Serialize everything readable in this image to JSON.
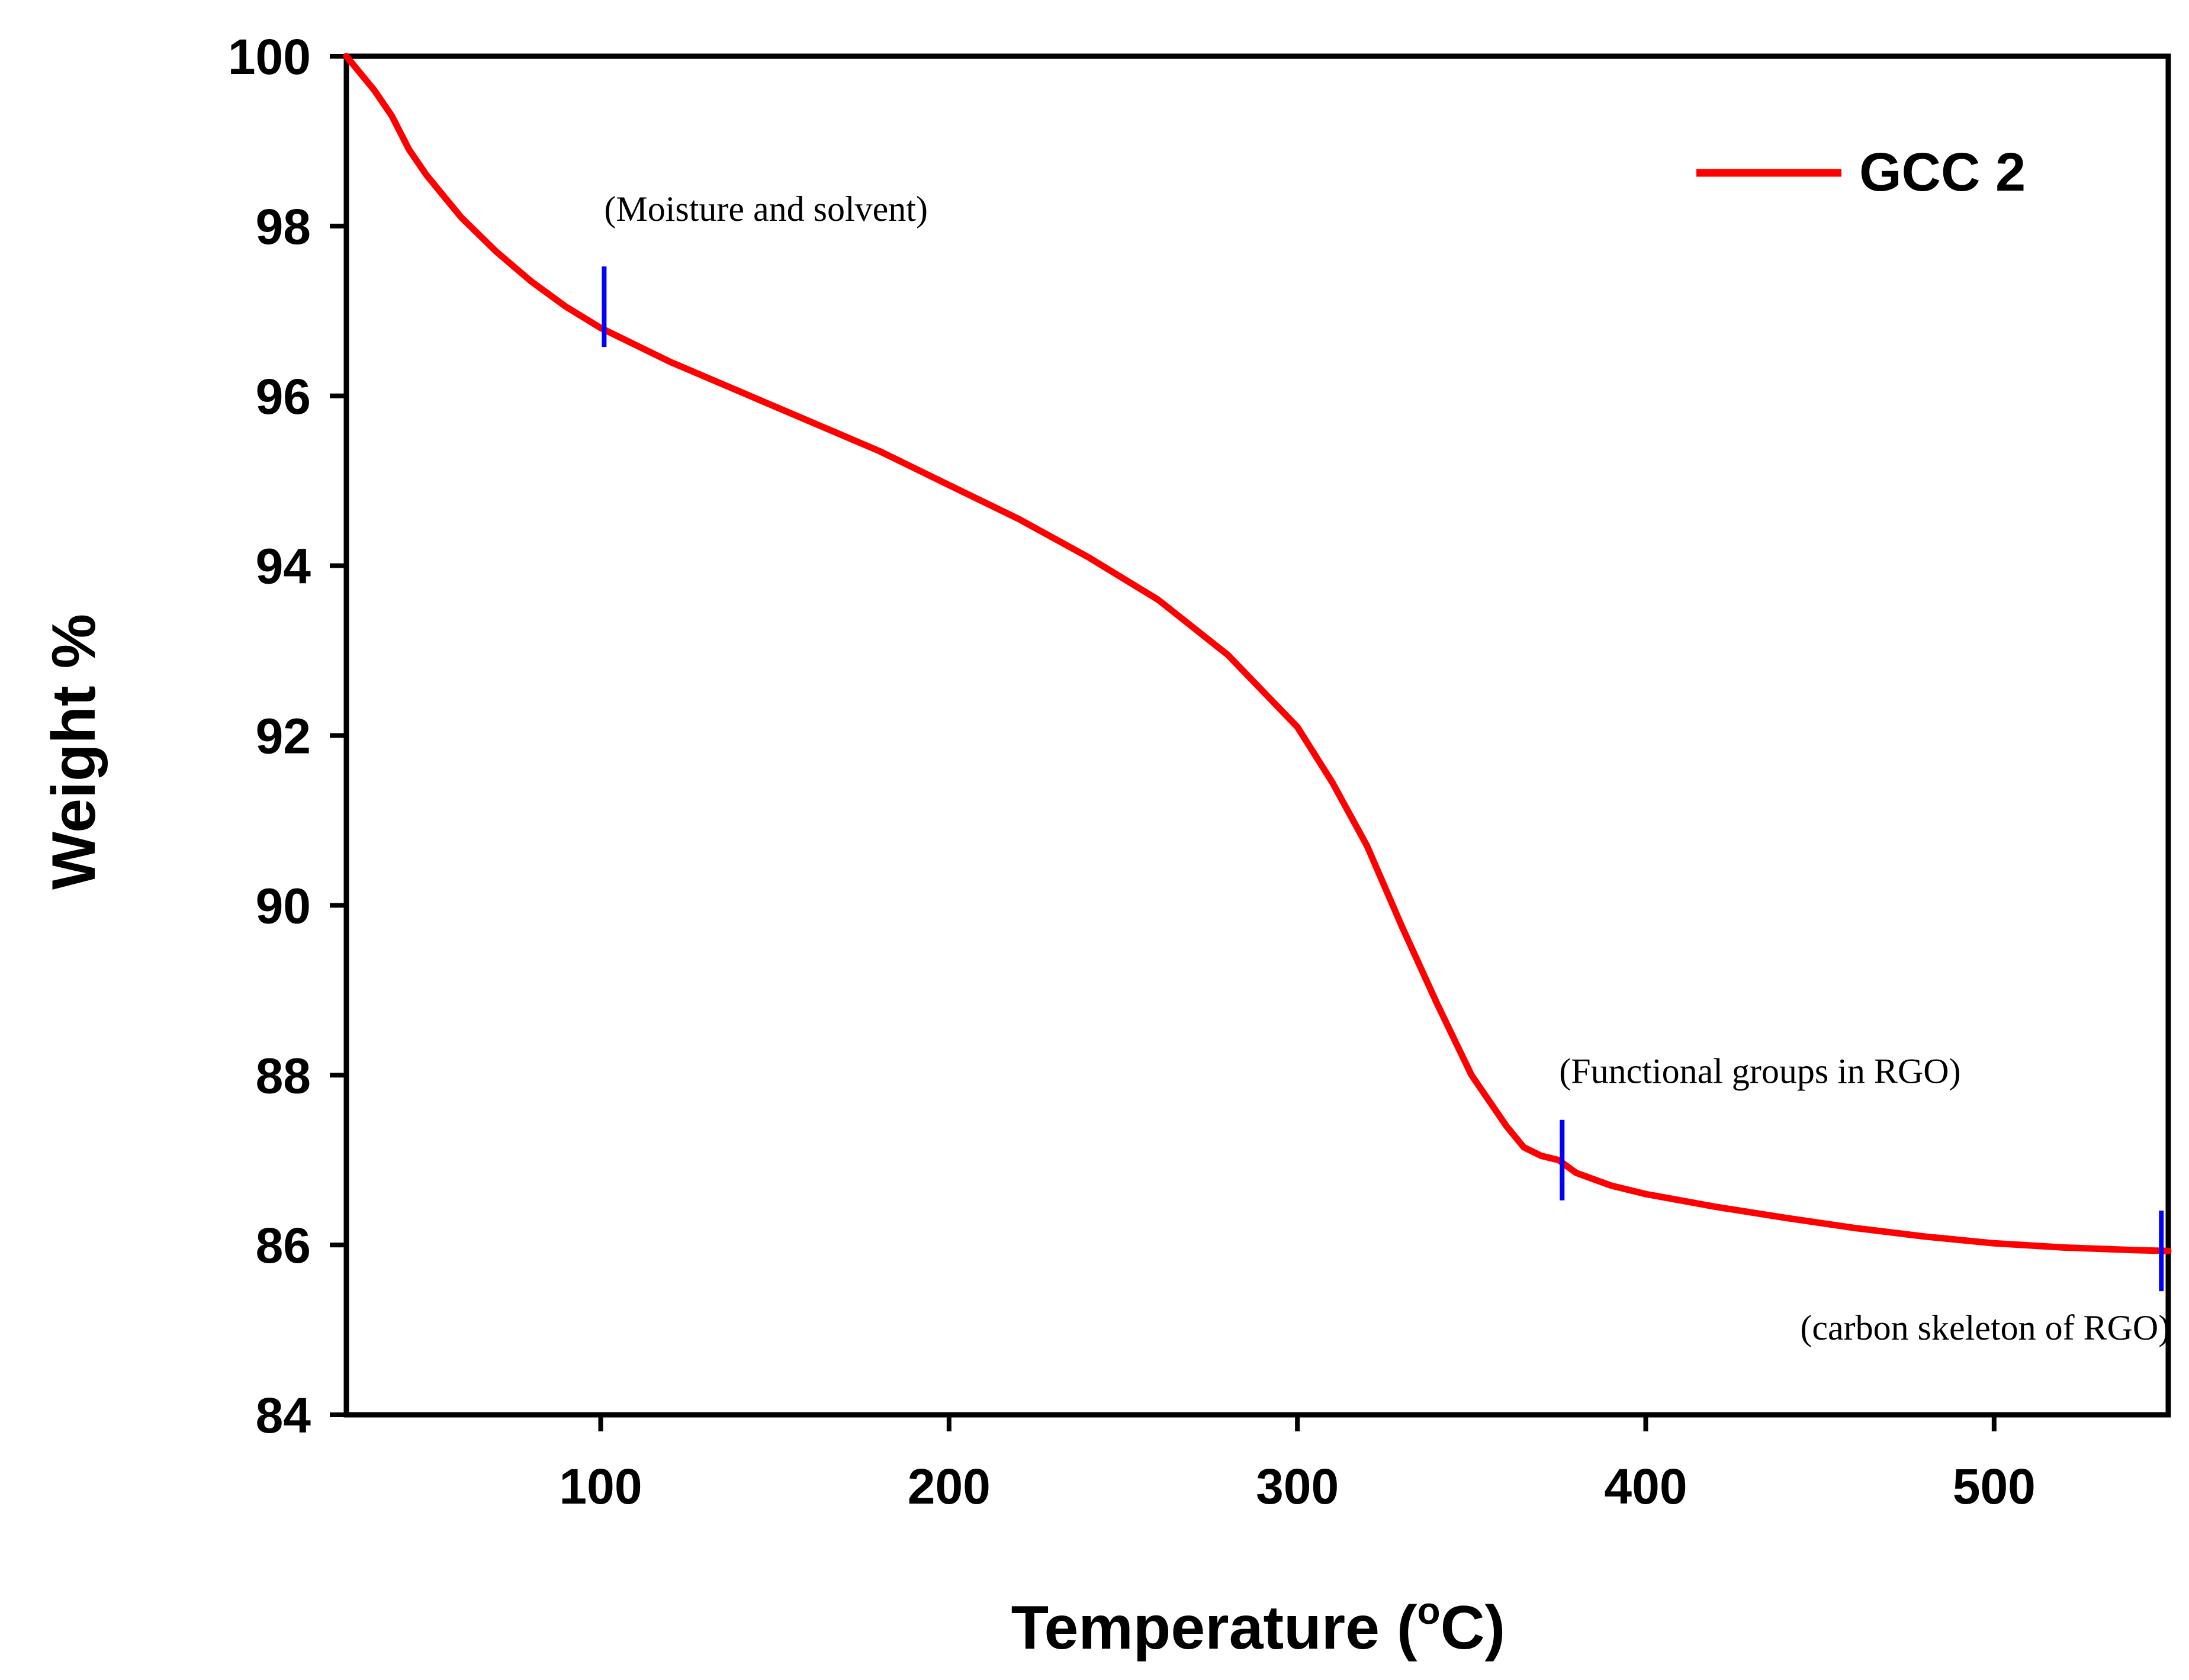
{
  "chart_data": {
    "type": "line",
    "xlabel": "Temperature (",
    "xlabel_sup": "o",
    "xlabel_unit": "C)",
    "ylabel": "Weight %",
    "xlim": [
      27,
      550
    ],
    "ylim": [
      84,
      100
    ],
    "x_ticks": [
      "100",
      "200",
      "300",
      "400",
      "500"
    ],
    "y_ticks": [
      "84",
      "86",
      "88",
      "90",
      "92",
      "94",
      "96",
      "98",
      "100"
    ],
    "grid": false,
    "legend_position": "top-right",
    "series": [
      {
        "name": "GCC 2",
        "color": "#ff0000",
        "x": [
          27,
          35,
          40,
          45,
          50,
          60,
          70,
          80,
          90,
          100,
          110,
          120,
          140,
          160,
          180,
          200,
          220,
          240,
          260,
          280,
          300,
          310,
          320,
          330,
          340,
          350,
          360,
          365,
          370,
          375,
          380,
          390,
          400,
          420,
          440,
          460,
          480,
          500,
          520,
          540,
          550
        ],
        "y": [
          100,
          99.6,
          99.3,
          98.9,
          98.6,
          98.1,
          97.7,
          97.35,
          97.05,
          96.8,
          96.6,
          96.4,
          96.05,
          95.7,
          95.35,
          94.95,
          94.55,
          94.1,
          93.6,
          92.95,
          92.1,
          91.45,
          90.7,
          89.75,
          88.85,
          88.0,
          87.4,
          87.15,
          87.05,
          87.0,
          86.85,
          86.7,
          86.6,
          86.45,
          86.32,
          86.2,
          86.1,
          86.02,
          85.97,
          85.94,
          85.93
        ]
      }
    ],
    "annotations": [
      {
        "text": "(Moisture and solvent)",
        "x": 101,
        "y": 97.05,
        "marker_color": "#0000ff"
      },
      {
        "text": "(Functional groups in RGO)",
        "x": 376,
        "y": 87.0,
        "marker_color": "#0000ff"
      },
      {
        "text": "(carbon skeleton of RGO)",
        "x": 548,
        "y": 85.93,
        "marker_color": "#0000ff"
      }
    ]
  }
}
